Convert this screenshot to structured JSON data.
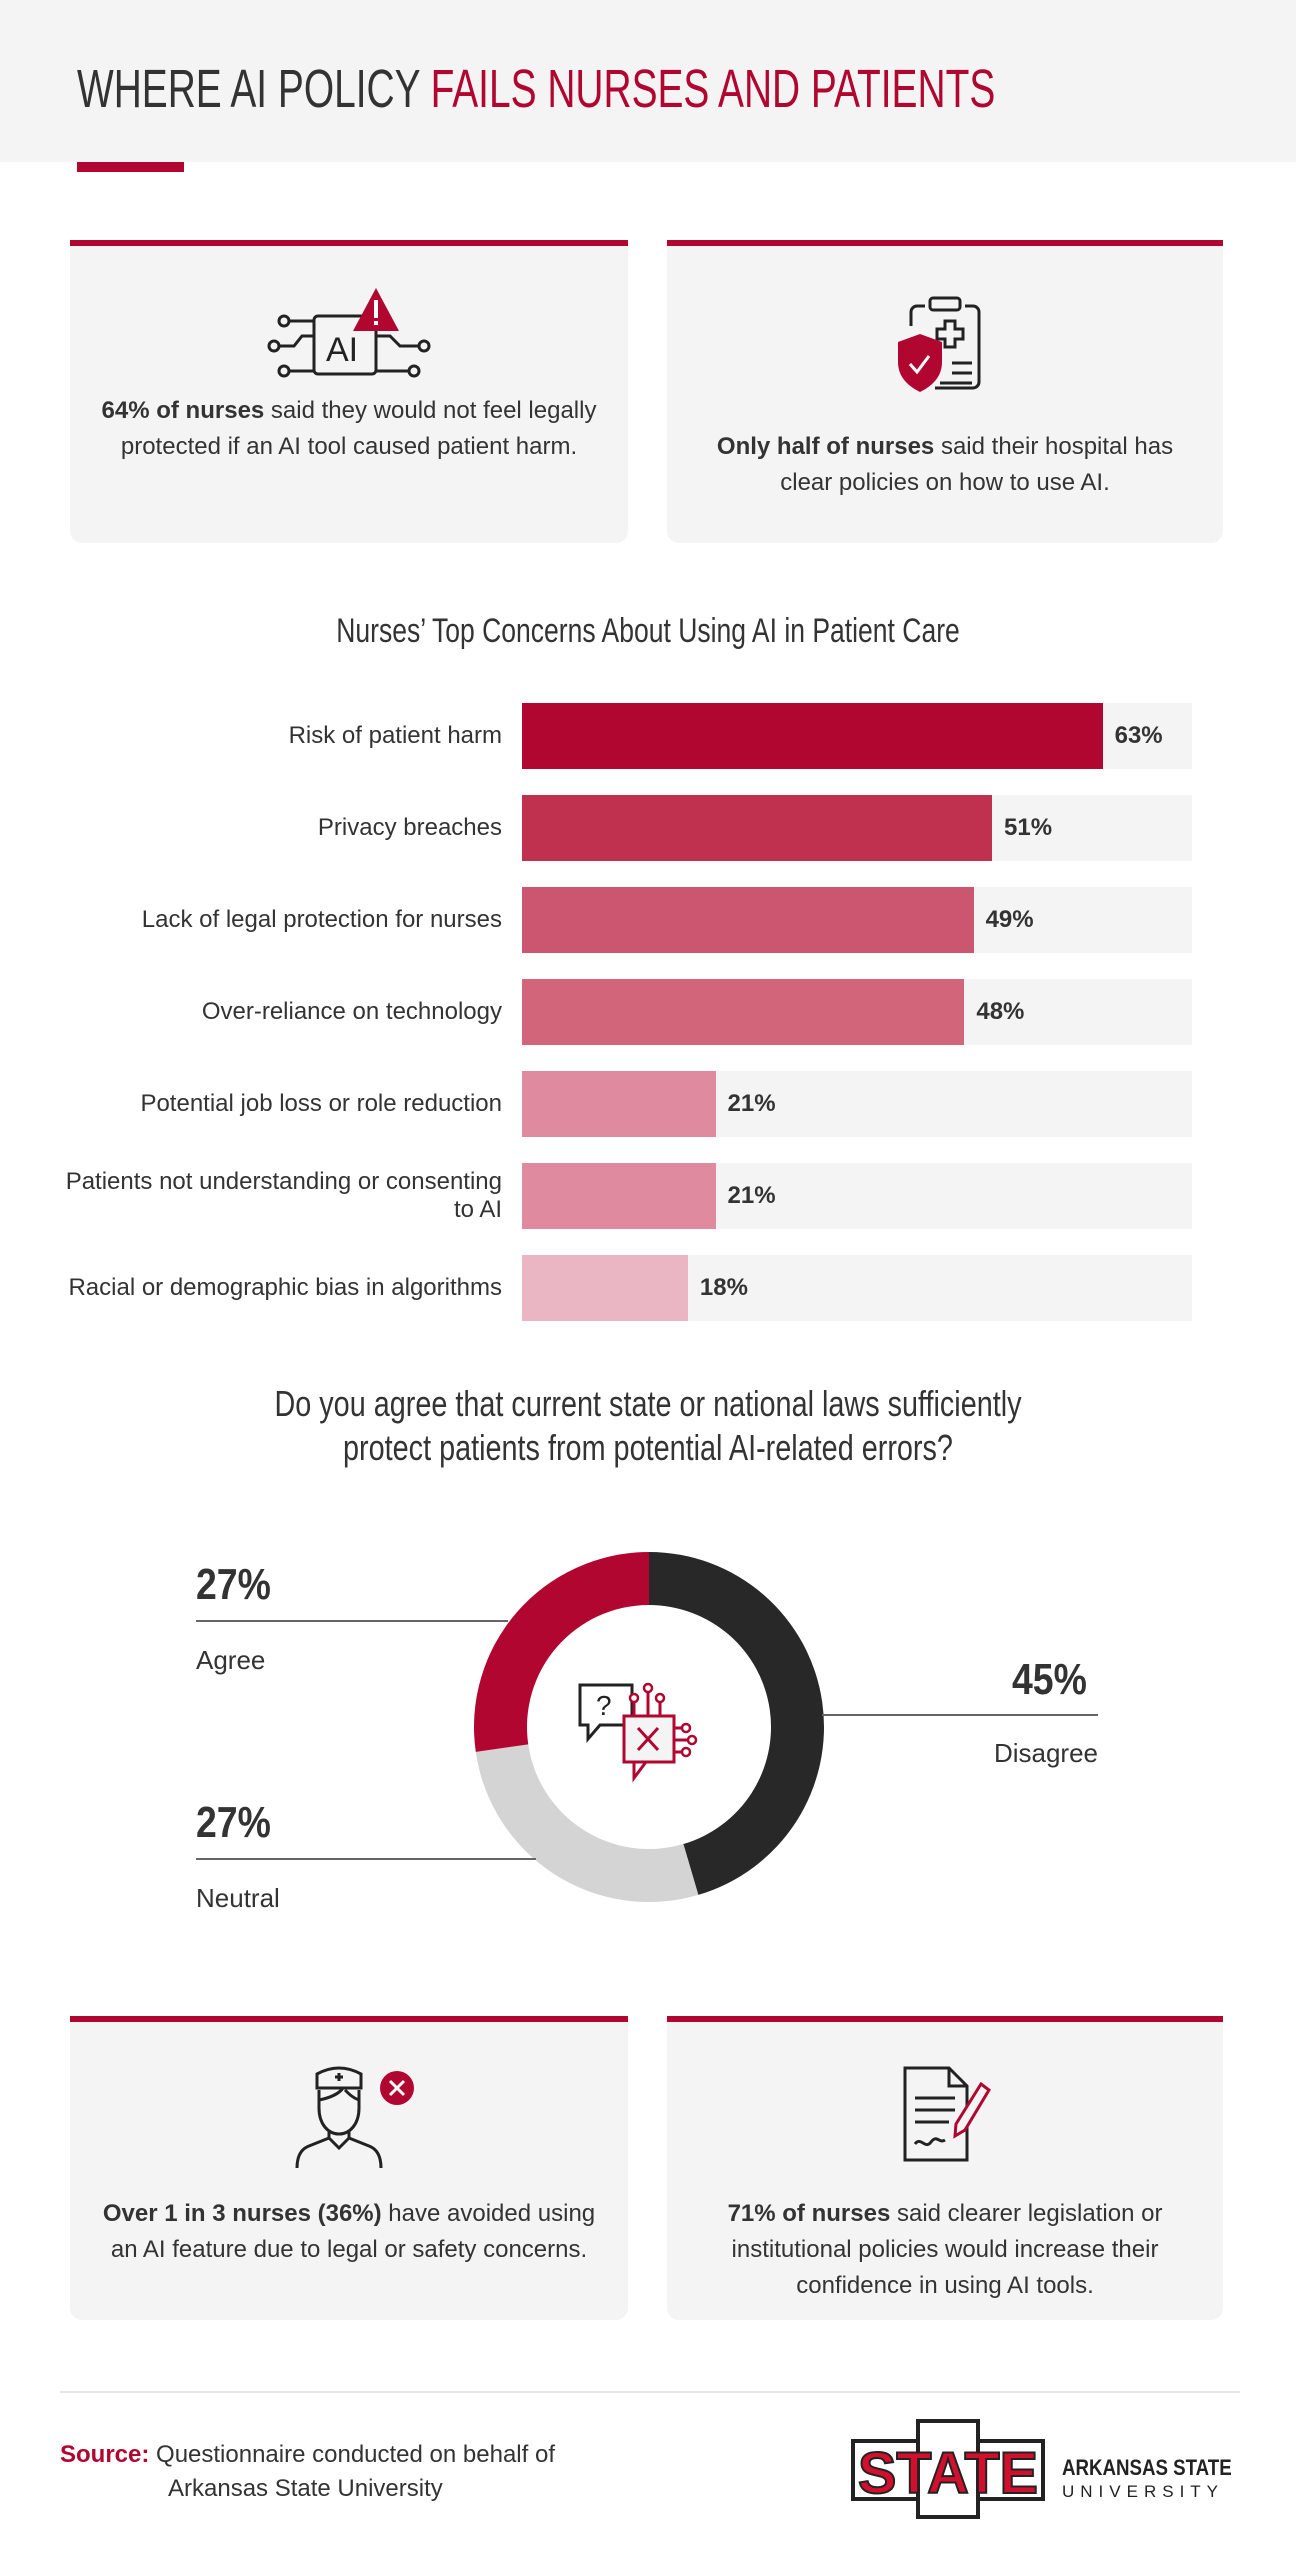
{
  "header": {
    "title_dark": "WHERE AI POLICY ",
    "title_red": "FAILS NURSES AND PATIENTS"
  },
  "cards_top": [
    {
      "icon": "ai-chip-warning-icon",
      "bold": "64% of nurses",
      "text": " said they would not feel legally protected if an AI tool caused patient harm."
    },
    {
      "icon": "clipboard-shield-icon",
      "bold": "Only half of nurses",
      "text": " said their hospital has clear policies on how to use AI."
    }
  ],
  "chart_data": [
    {
      "type": "bar",
      "orientation": "horizontal",
      "title": "Nurses’ Top Concerns About Using AI in Patient Care",
      "categories": [
        "Risk of patient harm",
        "Privacy breaches",
        "Lack of legal protection for nurses",
        "Over-reliance on technology",
        "Potential job loss or role reduction",
        "Patients not understanding or consenting to AI",
        "Racial or demographic bias in algorithms"
      ],
      "values": [
        63,
        51,
        49,
        48,
        21,
        21,
        18
      ],
      "value_labels": [
        "63%",
        "51%",
        "49%",
        "48%",
        "21%",
        "21%",
        "18%"
      ],
      "colors": [
        "#b0062f",
        "#c0304f",
        "#cc5570",
        "#d3657b",
        "#e08a9f",
        "#e08a9f",
        "#ebb6c3"
      ]
    },
    {
      "type": "pie",
      "donut": true,
      "title": "Do you agree that current state or national laws sufficiently protect patients from potential AI-related errors?",
      "categories": [
        "Disagree",
        "Neutral",
        "Agree"
      ],
      "values": [
        45,
        27,
        27
      ],
      "value_labels": [
        "45%",
        "27%",
        "27%"
      ],
      "colors": [
        "#282828",
        "#d4d4d4",
        "#b0062f"
      ],
      "center_icon": "chat-question-ai-error-icon"
    }
  ],
  "cards_bottom": [
    {
      "icon": "nurse-x-icon",
      "bold": "Over 1 in 3 nurses (36%)",
      "text": " have avoided using an AI feature due to legal or safety concerns."
    },
    {
      "icon": "document-pen-icon",
      "bold": "71% of nurses",
      "text": " said clearer legislation or institutional policies would increase their confidence in using AI tools."
    }
  ],
  "footer": {
    "source_label": "Source:",
    "source_line1": " Questionnaire conducted on behalf of",
    "source_line2": "Arkansas State University",
    "logo_text": "STATE",
    "logo_name": "ARKANSAS STATE",
    "logo_sub": "UNIVERSITY"
  }
}
